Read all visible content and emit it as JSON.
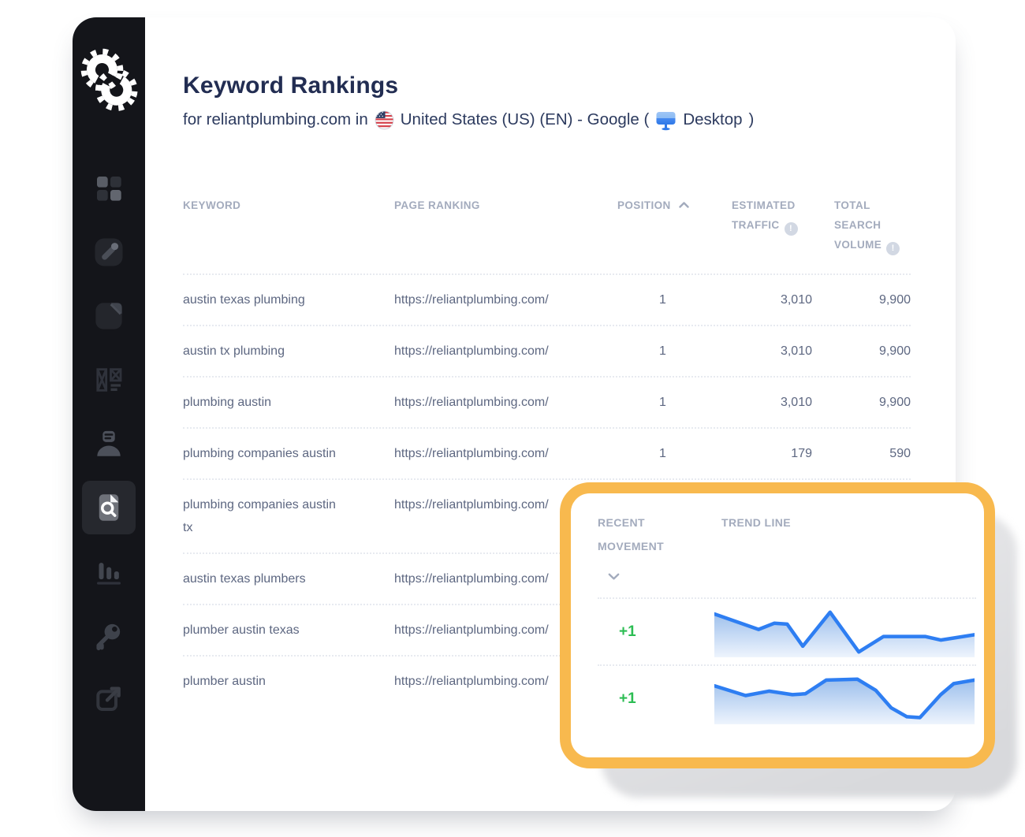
{
  "header": {
    "title": "Keyword Rankings",
    "for_text": "for reliantplumbing.com in",
    "location_text": "United States (US) (EN) - Google (",
    "device_text": "Desktop",
    "close_paren": ")"
  },
  "sidebar": {
    "logo": "spyfu-gear-logo",
    "items": [
      {
        "icon": "dashboard-grid-icon",
        "active": false
      },
      {
        "icon": "compose-pencil-icon",
        "active": false
      },
      {
        "icon": "page-document-icon",
        "active": false
      },
      {
        "icon": "layout-wireframe-icon",
        "active": false
      },
      {
        "icon": "user-profile-icon",
        "active": false
      },
      {
        "icon": "document-search-icon",
        "active": true
      },
      {
        "icon": "bar-chart-icon",
        "active": false
      },
      {
        "icon": "key-icon",
        "active": false
      },
      {
        "icon": "external-link-icon",
        "active": false
      }
    ]
  },
  "table": {
    "columns": [
      {
        "label": "KEYWORD",
        "sort": null,
        "info": false
      },
      {
        "label": "PAGE RANKING",
        "sort": null,
        "info": false
      },
      {
        "label": "POSITION",
        "sort": "asc",
        "info": false
      },
      {
        "label": "ESTIMATED TRAFFIC",
        "sort": null,
        "info": true
      },
      {
        "label": "TOTAL SEARCH VOLUME",
        "sort": null,
        "info": true
      }
    ],
    "rows": [
      {
        "keyword": "austin texas plumbing",
        "page": "https://reliantplumbing.com/",
        "position": "1",
        "traffic": "3,010",
        "volume": "9,900"
      },
      {
        "keyword": "austin tx plumbing",
        "page": "https://reliantplumbing.com/",
        "position": "1",
        "traffic": "3,010",
        "volume": "9,900"
      },
      {
        "keyword": "plumbing austin",
        "page": "https://reliantplumbing.com/",
        "position": "1",
        "traffic": "3,010",
        "volume": "9,900"
      },
      {
        "keyword": "plumbing companies austin",
        "page": "https://reliantplumbing.com/",
        "position": "1",
        "traffic": "179",
        "volume": "590"
      },
      {
        "keyword": "plumbing companies austin tx",
        "page": "https://reliantplumbing.com/",
        "position": "",
        "traffic": "",
        "volume": ""
      },
      {
        "keyword": "austin texas plumbers",
        "page": "https://reliantplumbing.com/",
        "position": "",
        "traffic": "",
        "volume": ""
      },
      {
        "keyword": "plumber austin texas",
        "page": "https://reliantplumbing.com/",
        "position": "",
        "traffic": "",
        "volume": ""
      },
      {
        "keyword": "plumber austin",
        "page": "https://reliantplumbing.com/",
        "position": "",
        "traffic": "",
        "volume": ""
      }
    ]
  },
  "overlay": {
    "columns": [
      {
        "label": "RECENT MOVEMENT",
        "sort": "desc"
      },
      {
        "label": "TREND LINE",
        "sort": null
      }
    ],
    "rows": [
      {
        "movement": "+1",
        "trend": [
          [
            0,
            0.91
          ],
          [
            0.17,
            0.56
          ],
          [
            0.23,
            0.7
          ],
          [
            0.28,
            0.68
          ],
          [
            0.34,
            0.18
          ],
          [
            0.445,
            0.95
          ],
          [
            0.555,
            0.05
          ],
          [
            0.65,
            0.4
          ],
          [
            0.81,
            0.4
          ],
          [
            0.87,
            0.32
          ],
          [
            1,
            0.44
          ]
        ]
      },
      {
        "movement": "+1",
        "trend": [
          [
            0,
            0.8
          ],
          [
            0.12,
            0.58
          ],
          [
            0.21,
            0.68
          ],
          [
            0.3,
            0.6
          ],
          [
            0.35,
            0.62
          ],
          [
            0.43,
            0.93
          ],
          [
            0.55,
            0.95
          ],
          [
            0.62,
            0.7
          ],
          [
            0.68,
            0.3
          ],
          [
            0.74,
            0.1
          ],
          [
            0.79,
            0.08
          ],
          [
            0.87,
            0.6
          ],
          [
            0.92,
            0.85
          ],
          [
            1,
            0.93
          ]
        ]
      }
    ]
  },
  "colors": {
    "accent_orange": "#f8b94e",
    "trend_line_blue": "#2e7ef2",
    "movement_green": "#2cbd53",
    "sidebar_bg": "#14151a",
    "title_navy": "#222d52",
    "header_gray": "#a3abbd",
    "cell_slate": "#5d6781"
  }
}
